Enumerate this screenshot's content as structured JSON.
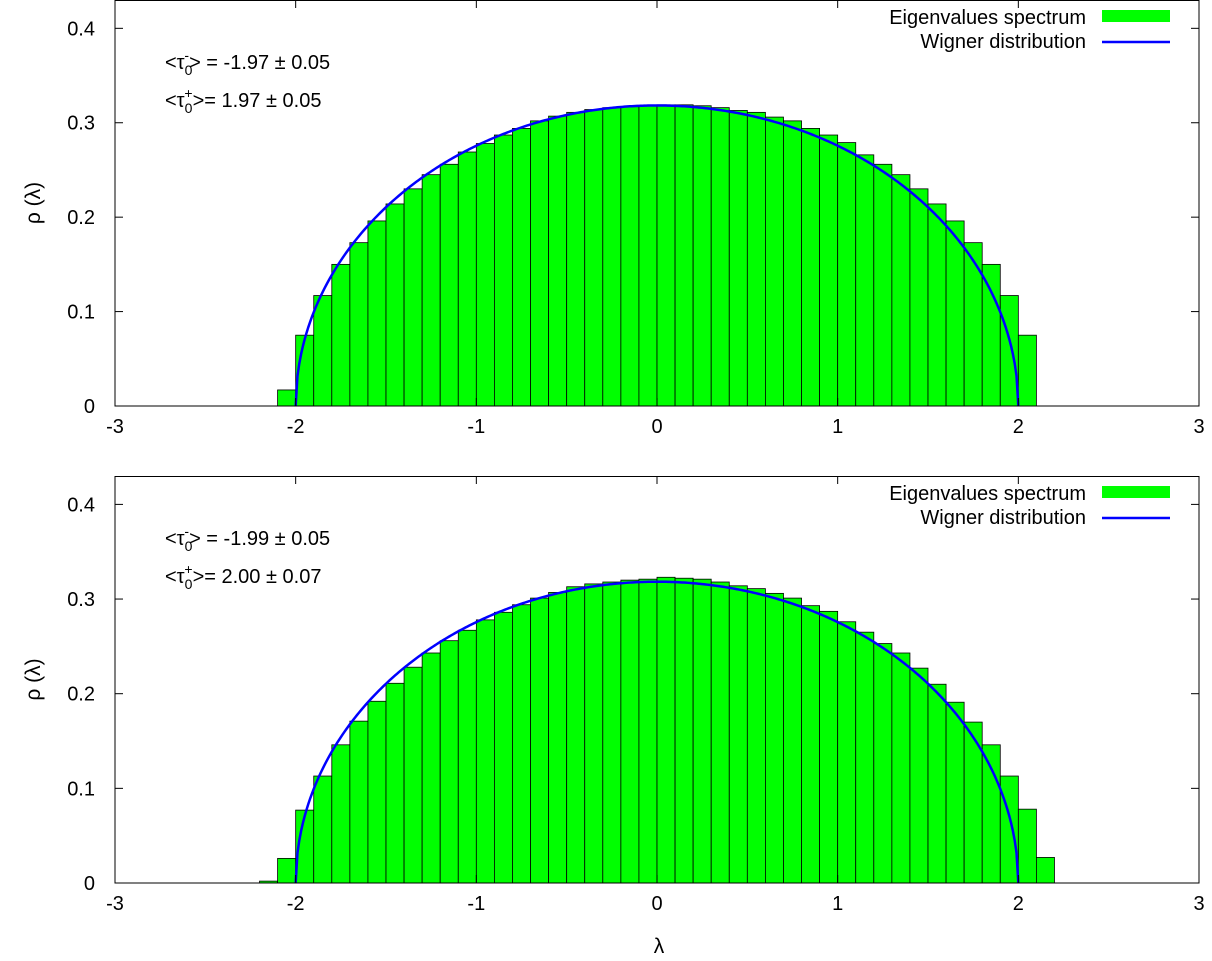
{
  "colors": {
    "bars": "#00ff00",
    "bar_edge": "#000000",
    "curve": "#0000ff"
  },
  "chart_data": [
    {
      "type": "bar",
      "xlabel": "",
      "ylabel": "ρ (λ)",
      "xlim": [
        -3,
        3
      ],
      "ylim": [
        0,
        0.43
      ],
      "xticks": [
        "-3",
        "-2",
        "-1",
        "0",
        "1",
        "2",
        "3"
      ],
      "yticks": [
        "0",
        "0.1",
        "0.2",
        "0.3",
        "0.4"
      ],
      "legend": {
        "position": "top-right",
        "entries": [
          "Eigenvalues spectrum",
          "Wigner distribution"
        ]
      },
      "annotations": [
        {
          "pre": "<τ",
          "sub": "0",
          "sup": "-",
          "post": "> = -1.97 ± 0.05"
        },
        {
          "pre": "<τ",
          "sub": "0",
          "sup": "+",
          "post": ">=  1.97 ± 0.05"
        }
      ],
      "bin_width": 0.1,
      "series": [
        {
          "name": "Eigenvalues spectrum",
          "type": "bar",
          "x": [
            -2.1,
            -2.0,
            -1.9,
            -1.8,
            -1.7,
            -1.6,
            -1.5,
            -1.4,
            -1.3,
            -1.2,
            -1.1,
            -1.0,
            -0.9,
            -0.8,
            -0.7,
            -0.6,
            -0.5,
            -0.4,
            -0.3,
            -0.2,
            -0.1,
            0.0,
            0.1,
            0.2,
            0.3,
            0.4,
            0.5,
            0.6,
            0.7,
            0.8,
            0.9,
            1.0,
            1.1,
            1.2,
            1.3,
            1.4,
            1.5,
            1.6,
            1.7,
            1.8,
            1.9,
            2.0
          ],
          "values": [
            0.017,
            0.075,
            0.117,
            0.15,
            0.173,
            0.196,
            0.214,
            0.23,
            0.245,
            0.256,
            0.269,
            0.278,
            0.287,
            0.294,
            0.302,
            0.307,
            0.311,
            0.314,
            0.316,
            0.317,
            0.318,
            0.319,
            0.319,
            0.318,
            0.316,
            0.313,
            0.311,
            0.306,
            0.302,
            0.294,
            0.287,
            0.279,
            0.266,
            0.256,
            0.245,
            0.23,
            0.214,
            0.196,
            0.173,
            0.15,
            0.117,
            0.075
          ]
        },
        {
          "name": "Wigner distribution",
          "type": "line",
          "function": "sqrt(4 - x^2) / (2π)",
          "domain": [
            -2,
            2
          ]
        }
      ]
    },
    {
      "type": "bar",
      "xlabel": "λ",
      "ylabel": "ρ (λ)",
      "xlim": [
        -3,
        3
      ],
      "ylim": [
        0,
        0.43
      ],
      "xticks": [
        "-3",
        "-2",
        "-1",
        "0",
        "1",
        "2",
        "3"
      ],
      "yticks": [
        "0",
        "0.1",
        "0.2",
        "0.3",
        "0.4"
      ],
      "legend": {
        "position": "top-right",
        "entries": [
          "Eigenvalues spectrum",
          "Wigner distribution"
        ]
      },
      "annotations": [
        {
          "pre": "<τ",
          "sub": "0",
          "sup": "-",
          "post": "> = -1.99 ± 0.05"
        },
        {
          "pre": "<τ",
          "sub": "0",
          "sup": "+",
          "post": ">=  2.00 ± 0.07"
        }
      ],
      "bin_width": 0.1,
      "series": [
        {
          "name": "Eigenvalues spectrum",
          "type": "bar",
          "x": [
            -2.2,
            -2.1,
            -2.0,
            -1.9,
            -1.8,
            -1.7,
            -1.6,
            -1.5,
            -1.4,
            -1.3,
            -1.2,
            -1.1,
            -1.0,
            -0.9,
            -0.8,
            -0.7,
            -0.6,
            -0.5,
            -0.4,
            -0.3,
            -0.2,
            -0.1,
            0.0,
            0.1,
            0.2,
            0.3,
            0.4,
            0.5,
            0.6,
            0.7,
            0.8,
            0.9,
            1.0,
            1.1,
            1.2,
            1.3,
            1.4,
            1.5,
            1.6,
            1.7,
            1.8,
            1.9,
            2.0,
            2.1
          ],
          "values": [
            0.002,
            0.026,
            0.077,
            0.113,
            0.146,
            0.171,
            0.192,
            0.211,
            0.228,
            0.243,
            0.256,
            0.267,
            0.278,
            0.286,
            0.294,
            0.301,
            0.307,
            0.313,
            0.316,
            0.318,
            0.32,
            0.321,
            0.323,
            0.322,
            0.321,
            0.318,
            0.314,
            0.311,
            0.306,
            0.301,
            0.293,
            0.287,
            0.276,
            0.265,
            0.253,
            0.243,
            0.227,
            0.21,
            0.191,
            0.17,
            0.146,
            0.113,
            0.078,
            0.027
          ]
        },
        {
          "name": "Wigner distribution",
          "type": "line",
          "function": "sqrt(4 - x^2) / (2π)",
          "domain": [
            -2,
            2
          ]
        }
      ]
    }
  ]
}
